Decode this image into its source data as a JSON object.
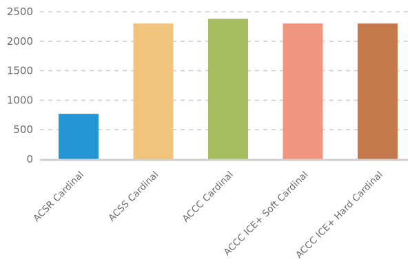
{
  "chart_data": {
    "type": "bar",
    "title": "",
    "xlabel": "",
    "ylabel": "",
    "categories": [
      "ACSR Cardinal",
      "ACSS Cardinal",
      "ACCC Cardinal",
      "ACCC ICE+ Soft Cardinal",
      "ACCC ICE+ Hard Cardinal"
    ],
    "values": [
      770,
      2300,
      2380,
      2300,
      2300
    ],
    "colors": [
      "#2496d3",
      "#f0c47c",
      "#a5bd5e",
      "#f0957e",
      "#c4784c"
    ],
    "yticks": [
      0,
      500,
      1000,
      1500,
      2000,
      2500
    ],
    "ylim": [
      0,
      2500
    ],
    "grid": true,
    "legend": "none"
  }
}
